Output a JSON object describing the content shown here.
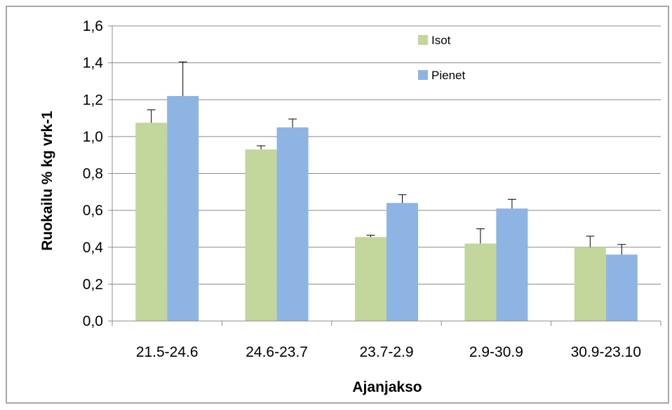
{
  "chart_data": {
    "type": "bar",
    "title": "",
    "xlabel": "Ajanjakso",
    "ylabel": "Ruokailu % kg vrk-1",
    "categories": [
      "21.5-24.6",
      "24.6-23.7",
      "23.7-2.9",
      "2.9-30.9",
      "30.9-23.10"
    ],
    "series": [
      {
        "name": "Isot",
        "color": "#c3d69b",
        "values": [
          1.075,
          0.93,
          0.455,
          0.42,
          0.4
        ],
        "error_plus": [
          0.07,
          0.02,
          0.01,
          0.08,
          0.06
        ]
      },
      {
        "name": "Pienet",
        "color": "#8eb4e3",
        "values": [
          1.22,
          1.05,
          0.64,
          0.61,
          0.36
        ],
        "error_plus": [
          0.185,
          0.045,
          0.045,
          0.05,
          0.055
        ]
      }
    ],
    "ylim": [
      0,
      1.6
    ],
    "yticks": [
      "0,0",
      "0,2",
      "0,4",
      "0,6",
      "0,8",
      "1,0",
      "1,2",
      "1,4",
      "1,6"
    ],
    "grid": true,
    "legend_position": "top-right"
  }
}
